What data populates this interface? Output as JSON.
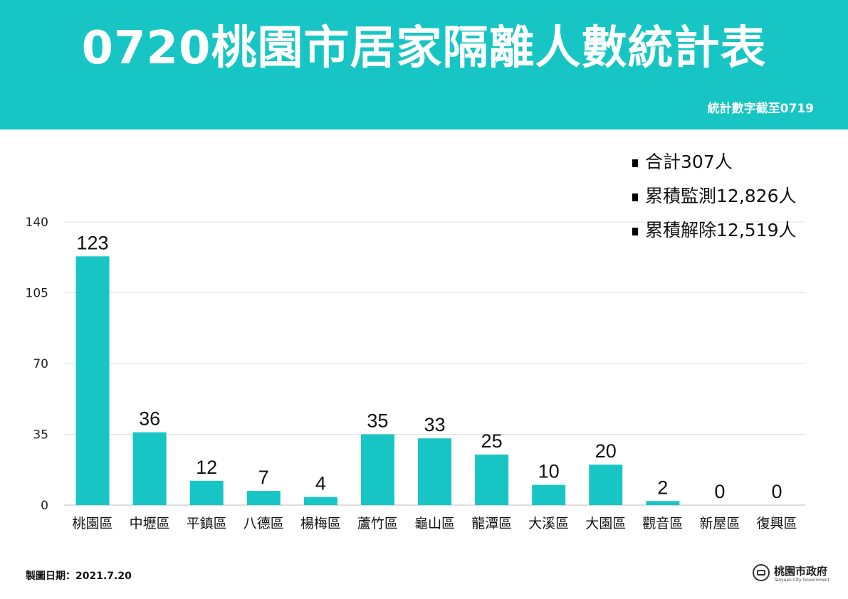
{
  "header": {
    "title": "0720桃園市居家隔離人數統計表",
    "subtitle": "統計數字截至0719"
  },
  "summary": [
    {
      "label": "合計",
      "value": "307人"
    },
    {
      "label": "累積監測",
      "value": "12,826人"
    },
    {
      "label": "累積解除",
      "value": "12,519人"
    }
  ],
  "chart_data": {
    "type": "bar",
    "categories": [
      "桃園區",
      "中壢區",
      "平鎮區",
      "八德區",
      "楊梅區",
      "蘆竹區",
      "龜山區",
      "龍潭區",
      "大溪區",
      "大園區",
      "觀音區",
      "新屋區",
      "復興區"
    ],
    "values": [
      123,
      36,
      12,
      7,
      4,
      35,
      33,
      25,
      10,
      20,
      2,
      0,
      0
    ],
    "y_ticks": [
      0,
      35,
      70,
      105,
      140
    ],
    "ylim": [
      0,
      140
    ],
    "title": "",
    "xlabel": "",
    "ylabel": "",
    "grid": true,
    "bar_color": "#17c6c4"
  },
  "footer": {
    "date_label": "製圖日期：2021.7.20",
    "org_name": "桃園市政府",
    "org_name_en": "Taoyuan City Government"
  }
}
